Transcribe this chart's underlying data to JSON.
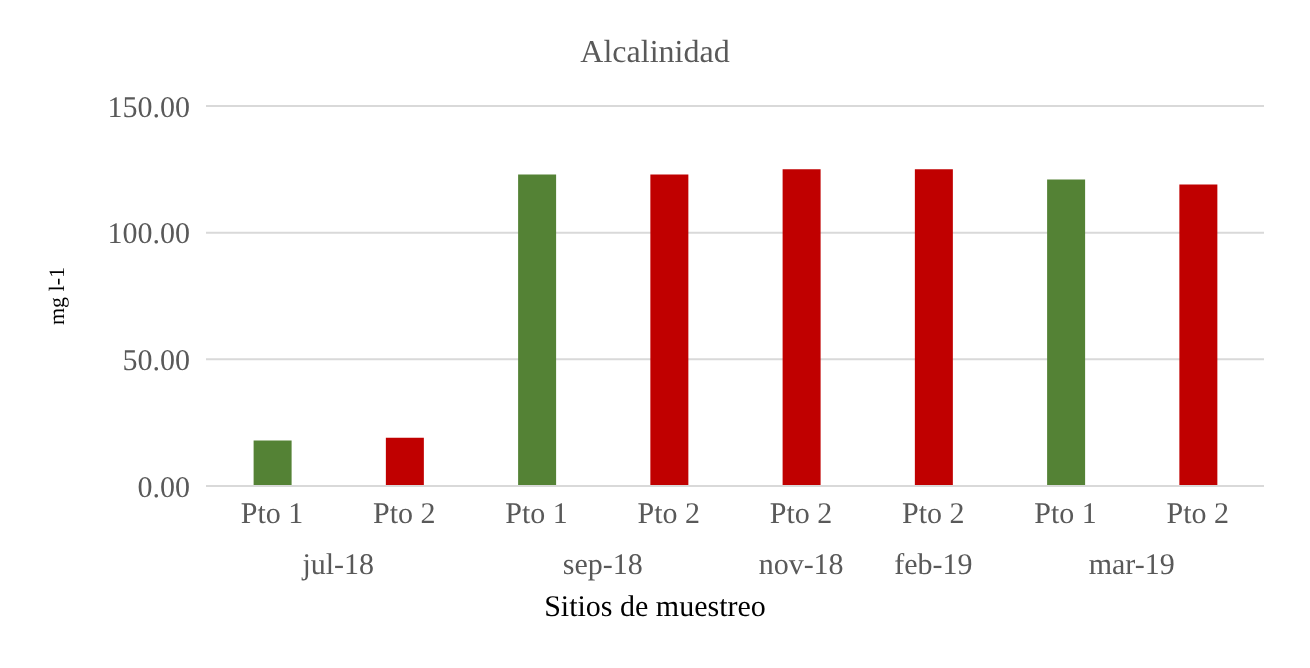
{
  "chart_data": {
    "type": "bar",
    "title": "Alcalinidad",
    "xlabel": "Sitios de muestreo",
    "ylabel": "mg l-1",
    "categories": [
      "Pto 1",
      "Pto 2",
      "Pto 1",
      "Pto 2",
      "Pto 2",
      "Pto 2",
      "Pto 1",
      "Pto 2"
    ],
    "values": [
      18,
      19,
      123,
      123,
      125,
      125,
      121,
      119
    ],
    "colors": [
      "#548235",
      "#c00000",
      "#548235",
      "#c00000",
      "#c00000",
      "#c00000",
      "#548235",
      "#c00000"
    ],
    "annotations": [
      "jul-18",
      "sep-18",
      "nov-18",
      "feb-19",
      "mar-19"
    ],
    "ylim": [
      0,
      150
    ],
    "yticks": [
      {
        "value": 0,
        "label": "0.00"
      },
      {
        "value": 50,
        "label": "50.00"
      },
      {
        "value": 100,
        "label": "100.00"
      },
      {
        "value": 150,
        "label": "150.00"
      }
    ],
    "grid": "y",
    "legend": false
  }
}
